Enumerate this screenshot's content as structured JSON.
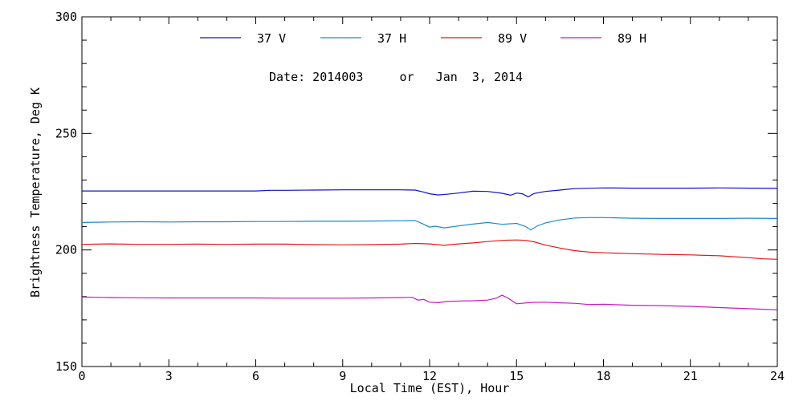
{
  "chart_data": {
    "type": "line",
    "title": "",
    "subtitle": "Date: 2014003     or   Jan  3, 2014",
    "xlabel": "Local Time (EST), Hour",
    "ylabel": "Brightness Temperature, Deg K",
    "xlim": [
      0,
      24
    ],
    "ylim": [
      150,
      300
    ],
    "xticks": [
      0,
      3,
      6,
      9,
      12,
      15,
      18,
      21,
      24
    ],
    "yticks": [
      150,
      200,
      250,
      300
    ],
    "grid": false,
    "legend_position": "top",
    "series": [
      {
        "name": "37 V",
        "color": "#1010c8",
        "x": [
          0,
          2,
          4,
          6,
          6.5,
          7,
          8,
          9,
          10,
          11,
          11.5,
          11.8,
          12,
          12.3,
          12.6,
          13,
          13.5,
          14,
          14.5,
          14.8,
          15,
          15.2,
          15.4,
          15.6,
          16,
          16.5,
          17,
          18,
          19,
          20,
          21,
          22,
          23,
          24
        ],
        "y": [
          225.3,
          225.3,
          225.3,
          225.3,
          225.6,
          225.6,
          225.7,
          225.8,
          225.8,
          225.8,
          225.7,
          224.8,
          224.1,
          223.6,
          223.9,
          224.4,
          225.2,
          225.1,
          224.3,
          223.5,
          224.4,
          224.1,
          222.8,
          224.2,
          225.1,
          225.7,
          226.3,
          226.6,
          226.5,
          226.5,
          226.5,
          226.6,
          226.5,
          226.4
        ]
      },
      {
        "name": "37 H",
        "color": "#1a8cc8",
        "x": [
          0,
          1,
          2,
          3,
          4,
          5,
          6,
          7,
          8,
          9,
          10,
          11,
          11.5,
          11.8,
          12,
          12.2,
          12.5,
          13,
          13.5,
          14,
          14.5,
          15,
          15.3,
          15.5,
          15.7,
          16,
          16.5,
          17,
          17.5,
          18,
          19,
          20,
          21,
          22,
          23,
          24
        ],
        "y": [
          211.8,
          212.0,
          212.1,
          212.0,
          212.1,
          212.1,
          212.2,
          212.2,
          212.3,
          212.3,
          212.4,
          212.5,
          212.6,
          211.0,
          209.8,
          210.2,
          209.5,
          210.3,
          211.1,
          211.8,
          211.0,
          211.4,
          210.1,
          208.6,
          210.2,
          211.6,
          212.9,
          213.7,
          213.9,
          213.9,
          213.6,
          213.5,
          213.5,
          213.5,
          213.6,
          213.5
        ]
      },
      {
        "name": "89 V",
        "color": "#e01818",
        "x": [
          0,
          1,
          2,
          3,
          4,
          5,
          6,
          7,
          8,
          9,
          10,
          11,
          11.5,
          12,
          12.5,
          13,
          13.5,
          14,
          14.5,
          15,
          15.3,
          15.6,
          16,
          16.5,
          17,
          17.5,
          18,
          19,
          20,
          21,
          22,
          23,
          23.5,
          24
        ],
        "y": [
          202.4,
          202.6,
          202.4,
          202.4,
          202.5,
          202.4,
          202.5,
          202.5,
          202.3,
          202.2,
          202.3,
          202.5,
          202.8,
          202.6,
          202.0,
          202.6,
          203.0,
          203.6,
          204.1,
          204.3,
          204.1,
          203.5,
          202.1,
          200.8,
          199.7,
          199.1,
          198.8,
          198.4,
          198.1,
          197.9,
          197.5,
          196.7,
          196.2,
          196.0
        ]
      },
      {
        "name": "89 H",
        "color": "#c818c8",
        "x": [
          0,
          1,
          2,
          3,
          4,
          5,
          6,
          7,
          8,
          9,
          10,
          11,
          11.4,
          11.6,
          11.8,
          12,
          12.3,
          12.6,
          13,
          13.5,
          14,
          14.3,
          14.5,
          14.7,
          15,
          15.5,
          16,
          16.5,
          17,
          17.5,
          18,
          19,
          20,
          21,
          22,
          23,
          24
        ],
        "y": [
          179.8,
          179.6,
          179.5,
          179.4,
          179.4,
          179.4,
          179.4,
          179.3,
          179.3,
          179.3,
          179.4,
          179.6,
          179.7,
          178.5,
          178.8,
          177.6,
          177.4,
          177.9,
          178.1,
          178.2,
          178.5,
          179.3,
          180.6,
          179.4,
          176.9,
          177.5,
          177.6,
          177.3,
          177.1,
          176.6,
          176.7,
          176.3,
          176.1,
          175.8,
          175.3,
          174.8,
          174.3
        ]
      }
    ]
  }
}
